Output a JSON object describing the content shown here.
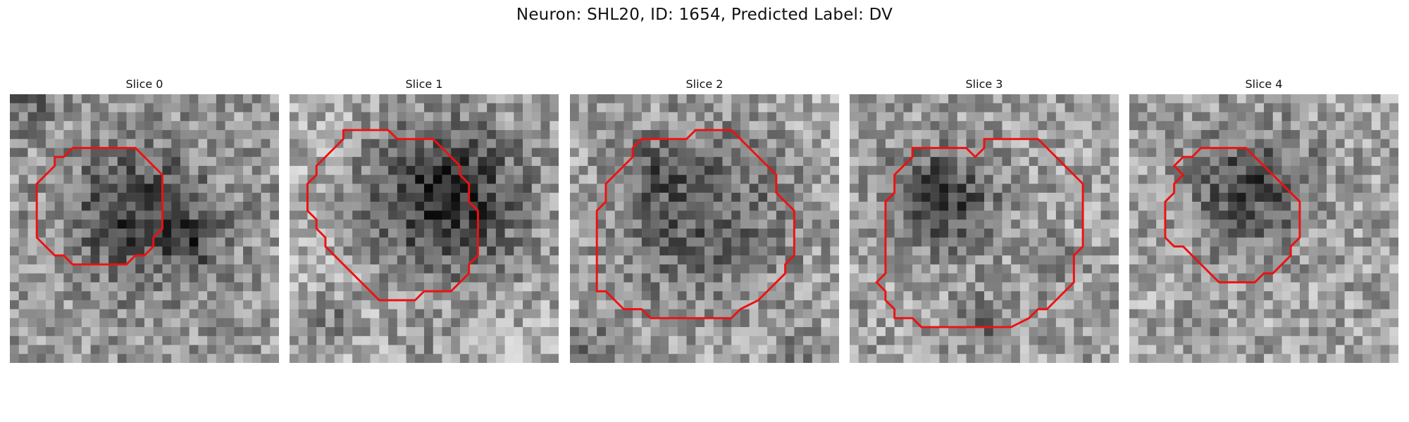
{
  "figure": {
    "title": "Neuron: SHL20, ID: 1654, Predicted Label: DV",
    "outline_color": "#ee1111",
    "colormap": "gray",
    "panels": [
      {
        "title": "Slice 0",
        "seed": 11,
        "base": 0.6,
        "blob_cx": 14,
        "blob_cy": 13,
        "blob_r": 8,
        "blob_depth": 0.36,
        "extra_dark": [
          [
            20,
            16,
            0.22
          ],
          [
            1,
            0,
            0.25
          ]
        ]
      },
      {
        "title": "Slice 1",
        "seed": 23,
        "base": 0.7,
        "blob_cx": 17,
        "blob_cy": 11,
        "blob_r": 10,
        "blob_depth": 0.52,
        "extra_dark": [
          [
            4,
            25,
            0.2
          ],
          [
            14,
            28,
            0.12
          ],
          [
            29,
            20,
            0.05
          ]
        ]
      },
      {
        "title": "Slice 2",
        "seed": 37,
        "base": 0.66,
        "blob_cx": 14,
        "blob_cy": 13,
        "blob_r": 11,
        "blob_depth": 0.3,
        "extra_dark": [
          [
            2,
            28,
            0.18
          ],
          [
            25,
            28,
            0.15
          ],
          [
            9,
            8,
            0.2
          ]
        ]
      },
      {
        "title": "Slice 3",
        "seed": 53,
        "base": 0.63,
        "blob_cx": 10,
        "blob_cy": 11,
        "blob_r": 6,
        "blob_depth": 0.38,
        "extra_dark": [
          [
            14,
            25,
            0.22
          ],
          [
            22,
            18,
            0.12
          ]
        ]
      },
      {
        "title": "Slice 4",
        "seed": 71,
        "base": 0.64,
        "blob_cx": 13,
        "blob_cy": 10,
        "blob_r": 7,
        "blob_depth": 0.36,
        "extra_dark": [
          [
            8,
            24,
            0.06
          ]
        ]
      }
    ],
    "outlines": [
      [
        [
          5,
          7
        ],
        [
          6,
          7
        ],
        [
          7,
          6
        ],
        [
          14,
          6
        ],
        [
          15,
          7
        ],
        [
          16,
          8
        ],
        [
          17,
          9
        ],
        [
          17,
          15
        ],
        [
          16,
          16
        ],
        [
          16,
          17
        ],
        [
          15,
          18
        ],
        [
          14,
          18
        ],
        [
          13,
          19
        ],
        [
          7,
          19
        ],
        [
          6,
          18
        ],
        [
          5,
          18
        ],
        [
          4,
          17
        ],
        [
          3,
          16
        ],
        [
          3,
          10
        ],
        [
          4,
          9
        ],
        [
          5,
          8
        ]
      ],
      [
        [
          6,
          4
        ],
        [
          11,
          4
        ],
        [
          12,
          5
        ],
        [
          16,
          5
        ],
        [
          17,
          6
        ],
        [
          18,
          7
        ],
        [
          19,
          8
        ],
        [
          19,
          9
        ],
        [
          20,
          10
        ],
        [
          20,
          12
        ],
        [
          21,
          13
        ],
        [
          21,
          18
        ],
        [
          20,
          19
        ],
        [
          20,
          20
        ],
        [
          19,
          21
        ],
        [
          18,
          22
        ],
        [
          15,
          22
        ],
        [
          14,
          23
        ],
        [
          10,
          23
        ],
        [
          9,
          22
        ],
        [
          8,
          21
        ],
        [
          7,
          20
        ],
        [
          5,
          18
        ],
        [
          4,
          17
        ],
        [
          4,
          16
        ],
        [
          3,
          15
        ],
        [
          3,
          14
        ],
        [
          2,
          13
        ],
        [
          2,
          10
        ],
        [
          3,
          9
        ],
        [
          3,
          8
        ],
        [
          4,
          7
        ],
        [
          5,
          6
        ],
        [
          6,
          5
        ]
      ],
      [
        [
          8,
          5
        ],
        [
          13,
          5
        ],
        [
          14,
          4
        ],
        [
          18,
          4
        ],
        [
          19,
          5
        ],
        [
          20,
          6
        ],
        [
          21,
          7
        ],
        [
          22,
          8
        ],
        [
          23,
          9
        ],
        [
          23,
          11
        ],
        [
          24,
          12
        ],
        [
          25,
          13
        ],
        [
          25,
          18
        ],
        [
          24,
          19
        ],
        [
          24,
          20
        ],
        [
          23,
          21
        ],
        [
          22,
          22
        ],
        [
          21,
          23
        ],
        [
          19,
          24
        ],
        [
          18,
          25
        ],
        [
          9,
          25
        ],
        [
          8,
          24
        ],
        [
          6,
          24
        ],
        [
          5,
          23
        ],
        [
          4,
          22
        ],
        [
          3,
          22
        ],
        [
          3,
          13
        ],
        [
          4,
          12
        ],
        [
          4,
          10
        ],
        [
          5,
          9
        ],
        [
          6,
          8
        ],
        [
          7,
          7
        ],
        [
          7,
          6
        ]
      ],
      [
        [
          7,
          6
        ],
        [
          13,
          6
        ],
        [
          14,
          7
        ],
        [
          15,
          6
        ],
        [
          15,
          5
        ],
        [
          21,
          5
        ],
        [
          22,
          6
        ],
        [
          23,
          7
        ],
        [
          24,
          8
        ],
        [
          25,
          9
        ],
        [
          26,
          10
        ],
        [
          26,
          17
        ],
        [
          25,
          18
        ],
        [
          25,
          21
        ],
        [
          24,
          22
        ],
        [
          23,
          23
        ],
        [
          22,
          24
        ],
        [
          21,
          24
        ],
        [
          20,
          25
        ],
        [
          18,
          26
        ],
        [
          8,
          26
        ],
        [
          7,
          25
        ],
        [
          5,
          25
        ],
        [
          5,
          24
        ],
        [
          4,
          23
        ],
        [
          4,
          22
        ],
        [
          3,
          21
        ],
        [
          4,
          20
        ],
        [
          4,
          12
        ],
        [
          5,
          11
        ],
        [
          5,
          9
        ],
        [
          6,
          8
        ],
        [
          7,
          7
        ]
      ],
      [
        [
          5,
          8
        ],
        [
          6,
          7
        ],
        [
          7,
          7
        ],
        [
          8,
          6
        ],
        [
          13,
          6
        ],
        [
          14,
          7
        ],
        [
          15,
          8
        ],
        [
          16,
          9
        ],
        [
          17,
          10
        ],
        [
          18,
          11
        ],
        [
          19,
          12
        ],
        [
          19,
          16
        ],
        [
          18,
          17
        ],
        [
          18,
          18
        ],
        [
          17,
          19
        ],
        [
          16,
          20
        ],
        [
          15,
          20
        ],
        [
          14,
          21
        ],
        [
          10,
          21
        ],
        [
          9,
          20
        ],
        [
          8,
          19
        ],
        [
          7,
          18
        ],
        [
          6,
          17
        ],
        [
          5,
          17
        ],
        [
          4,
          16
        ],
        [
          4,
          12
        ],
        [
          5,
          11
        ],
        [
          5,
          10
        ],
        [
          6,
          9
        ]
      ]
    ]
  }
}
